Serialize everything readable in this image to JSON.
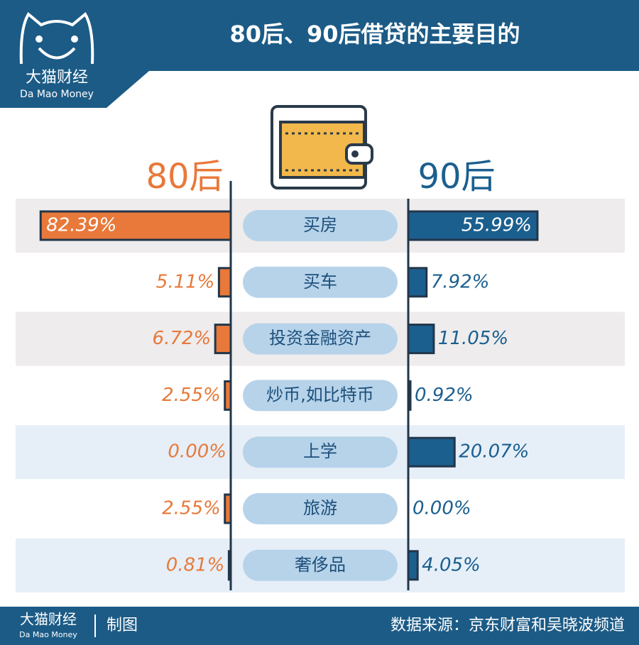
{
  "logo": {
    "name": "大猫财经",
    "sub": "Da Mao Money"
  },
  "chart_data": {
    "type": "butterfly",
    "title": "80后、90后借贷的主要目的",
    "categories": [
      "买房",
      "买车",
      "投资金融资产",
      "炒币,如比特币",
      "上学",
      "旅游",
      "奢侈品"
    ],
    "series": [
      {
        "name": "80后",
        "color": "#e8793a",
        "values": [
          82.39,
          5.11,
          6.72,
          2.55,
          0,
          2.55,
          0.81
        ],
        "value_labels": [
          "82.39%",
          "5.11%",
          "6.72%",
          "2.55%",
          "0.00%",
          "2.55%",
          "0.81%"
        ]
      },
      {
        "name": "90后",
        "color": "#1b5f8f",
        "values": [
          55.99,
          7.92,
          11.05,
          0.92,
          20.07,
          0,
          4.05
        ],
        "value_labels": [
          "55.99%",
          "7.92%",
          "11.05%",
          "0.92%",
          "20.07%",
          "0.00%",
          "4.05%"
        ]
      }
    ]
  },
  "footer": {
    "name": "大猫财经",
    "sub": "Da Mao Money",
    "credit": "制图",
    "source": "数据来源：京东财富和吴晓波频道"
  }
}
